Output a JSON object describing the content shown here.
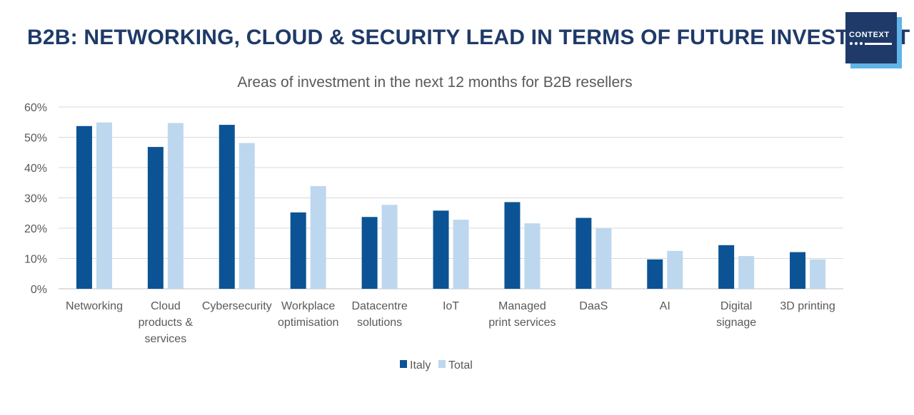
{
  "slide": {
    "title": "B2B: NETWORKING, CLOUD & SECURITY LEAD IN TERMS OF FUTURE INVESTMENT",
    "logo_text": "CONTEXT"
  },
  "colors": {
    "italy": "#0b5394",
    "total": "#bdd7ee",
    "title": "#1f3a68",
    "grid": "#d9d9d9"
  },
  "chart_data": {
    "type": "bar",
    "title": "Areas of investment in the next 12 months for B2B resellers",
    "categories": [
      [
        "Networking"
      ],
      [
        "Cloud",
        "products &",
        "services"
      ],
      [
        "Cybersecurity"
      ],
      [
        "Workplace",
        "optimisation"
      ],
      [
        "Datacentre",
        "solutions"
      ],
      [
        "IoT"
      ],
      [
        "Managed",
        "print services"
      ],
      [
        "DaaS"
      ],
      [
        "AI"
      ],
      [
        "Digital",
        "signage"
      ],
      [
        "3D printing"
      ]
    ],
    "series": [
      {
        "name": "Italy",
        "values": [
          53.7,
          46.8,
          54.1,
          25.2,
          23.7,
          25.8,
          28.6,
          23.4,
          9.7,
          14.4,
          12.1
        ]
      },
      {
        "name": "Total",
        "values": [
          54.9,
          54.7,
          48.1,
          33.9,
          27.7,
          22.8,
          21.6,
          20.0,
          12.5,
          10.8,
          9.7
        ]
      }
    ],
    "ylim": [
      0,
      60
    ],
    "yticks": [
      "0%",
      "10%",
      "20%",
      "30%",
      "40%",
      "50%",
      "60%"
    ],
    "xlabel": "",
    "ylabel": "",
    "grid": true,
    "legend": "bottom-center"
  }
}
